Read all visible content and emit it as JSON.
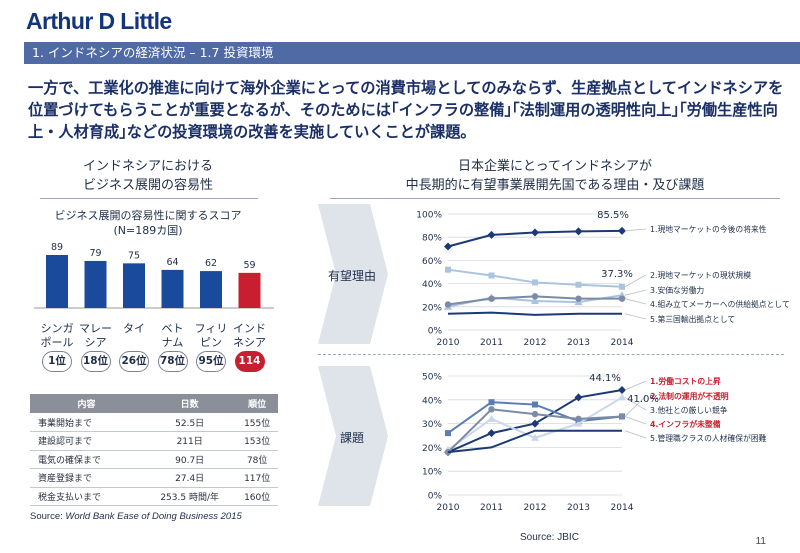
{
  "logo": "Arthur D Little",
  "page_number": "11",
  "section_title": "1. インドネシアの経済状況 – 1.7 投資環境",
  "headline": "一方で、工業化の推進に向けて海外企業にとっての消費市場としてのみならず、生産拠点としてインドネシアを位置づけてもらうことが重要となるが、そのためには｢インフラの整備｣｢法制運用の透明性向上｣｢労働生産性向上・人材育成｣などの投資環境の改善を実施していくことが課題。",
  "left": {
    "title_line1": "インドネシアにおける",
    "title_line2": "ビジネス展開の容易性",
    "chart_caption_line1": "ビジネス展開の容易性に関するスコア",
    "chart_caption_line2": "(N=189カ国)",
    "table": {
      "headers": [
        "内容",
        "日数",
        "順位"
      ],
      "rows": [
        [
          "事業開始まで",
          "52.5日",
          "155位"
        ],
        [
          "建設認可まで",
          "211日",
          "153位"
        ],
        [
          "電気の確保まで",
          "90.7日",
          "78位"
        ],
        [
          "資産登録まで",
          "27.4日",
          "117位"
        ],
        [
          "税金支払いまで",
          "253.5 時間/年",
          "160位"
        ]
      ]
    },
    "source_prefix": "Source: ",
    "source_italic": "World Bank Ease of Doing Business 2015"
  },
  "right": {
    "title_line1": "日本企業にとってインドネシアが",
    "title_line2": "中長期的に有望事業展開先国である理由・及び課題",
    "label_top": "有望理由",
    "label_bottom": "課題",
    "source": "Source: JBIC"
  },
  "colors": {
    "bar": "#1a4a9c",
    "bar_highlight": "#c81e2f",
    "dark_navy": "#1b3a75",
    "mid_blue": "#5a7eb4",
    "light_blue": "#a9c3e0",
    "gray_blue": "#7c8aa6",
    "gray": "#8c93a0",
    "red_text": "#c81e2f"
  },
  "chart_data": [
    {
      "type": "bar",
      "categories": [
        "シンガ\nポール",
        "マレー\nシア",
        "タイ",
        "ベト\nナム",
        "フィリ\nピン",
        "インド\nネシア"
      ],
      "values": [
        89,
        79,
        75,
        64,
        62,
        59
      ],
      "ranks": [
        "1位",
        "18位",
        "26位",
        "78位",
        "95位",
        "114位"
      ],
      "highlight_index": 5,
      "ylim": [
        0,
        100
      ]
    },
    {
      "type": "line",
      "x": [
        2010,
        2011,
        2012,
        2013,
        2014
      ],
      "ylim": [
        0,
        100
      ],
      "yticks": [
        "0%",
        "20%",
        "40%",
        "60%",
        "80%",
        "100%"
      ],
      "annotations": [
        "85.5%",
        "37.3%"
      ],
      "series": [
        {
          "name": "1.現地マーケットの今後の将来性",
          "values": [
            72,
            82,
            84,
            85,
            85.5
          ],
          "color": "#1b3a75",
          "marker": "diamond",
          "red": false
        },
        {
          "name": "2.現地マーケットの現状規模",
          "values": [
            52,
            47,
            41,
            39,
            37.3
          ],
          "color": "#a9c3e0",
          "marker": "square",
          "red": false
        },
        {
          "name": "3.安価な労働力",
          "values": [
            20,
            28,
            25,
            24,
            30
          ],
          "color": "#a9c3e0",
          "marker": "triangle",
          "red": false
        },
        {
          "name": "4.組み立てメーカーへの供給拠点として",
          "values": [
            22,
            27,
            29,
            27,
            27
          ],
          "color": "#7c8aa6",
          "marker": "circle",
          "red": false
        },
        {
          "name": "5.第三国輸出拠点として",
          "values": [
            14,
            15,
            13,
            14,
            14
          ],
          "color": "#1b3a75",
          "marker": "none",
          "red": false
        }
      ]
    },
    {
      "type": "line",
      "x": [
        2010,
        2011,
        2012,
        2013,
        2014
      ],
      "ylim": [
        0,
        50
      ],
      "yticks": [
        "0%",
        "10%",
        "20%",
        "30%",
        "40%",
        "50%"
      ],
      "annotations": [
        "44.1%",
        "41.0%"
      ],
      "series": [
        {
          "name": "1.労働コストの上昇",
          "values": [
            18,
            26,
            30,
            41,
            44.1
          ],
          "color": "#1b3a75",
          "marker": "diamond",
          "red": true
        },
        {
          "name": "2.法制の運用が不透明",
          "values": [
            26,
            39,
            38,
            31,
            33
          ],
          "color": "#5a7eb4",
          "marker": "square",
          "red": true
        },
        {
          "name": "3.他社との厳しい競争",
          "values": [
            19,
            32,
            24,
            30,
            41
          ],
          "color": "#c9d7ea",
          "marker": "triangle",
          "red": false
        },
        {
          "name": "4.インフラが未整備",
          "values": [
            18,
            36,
            34,
            32,
            33
          ],
          "color": "#7c8aa6",
          "marker": "circle",
          "red": true
        },
        {
          "name": "5.管理職クラスの人材確保が困難",
          "values": [
            18,
            20,
            27,
            27,
            27
          ],
          "color": "#1b3a75",
          "marker": "none",
          "red": false
        }
      ]
    }
  ]
}
